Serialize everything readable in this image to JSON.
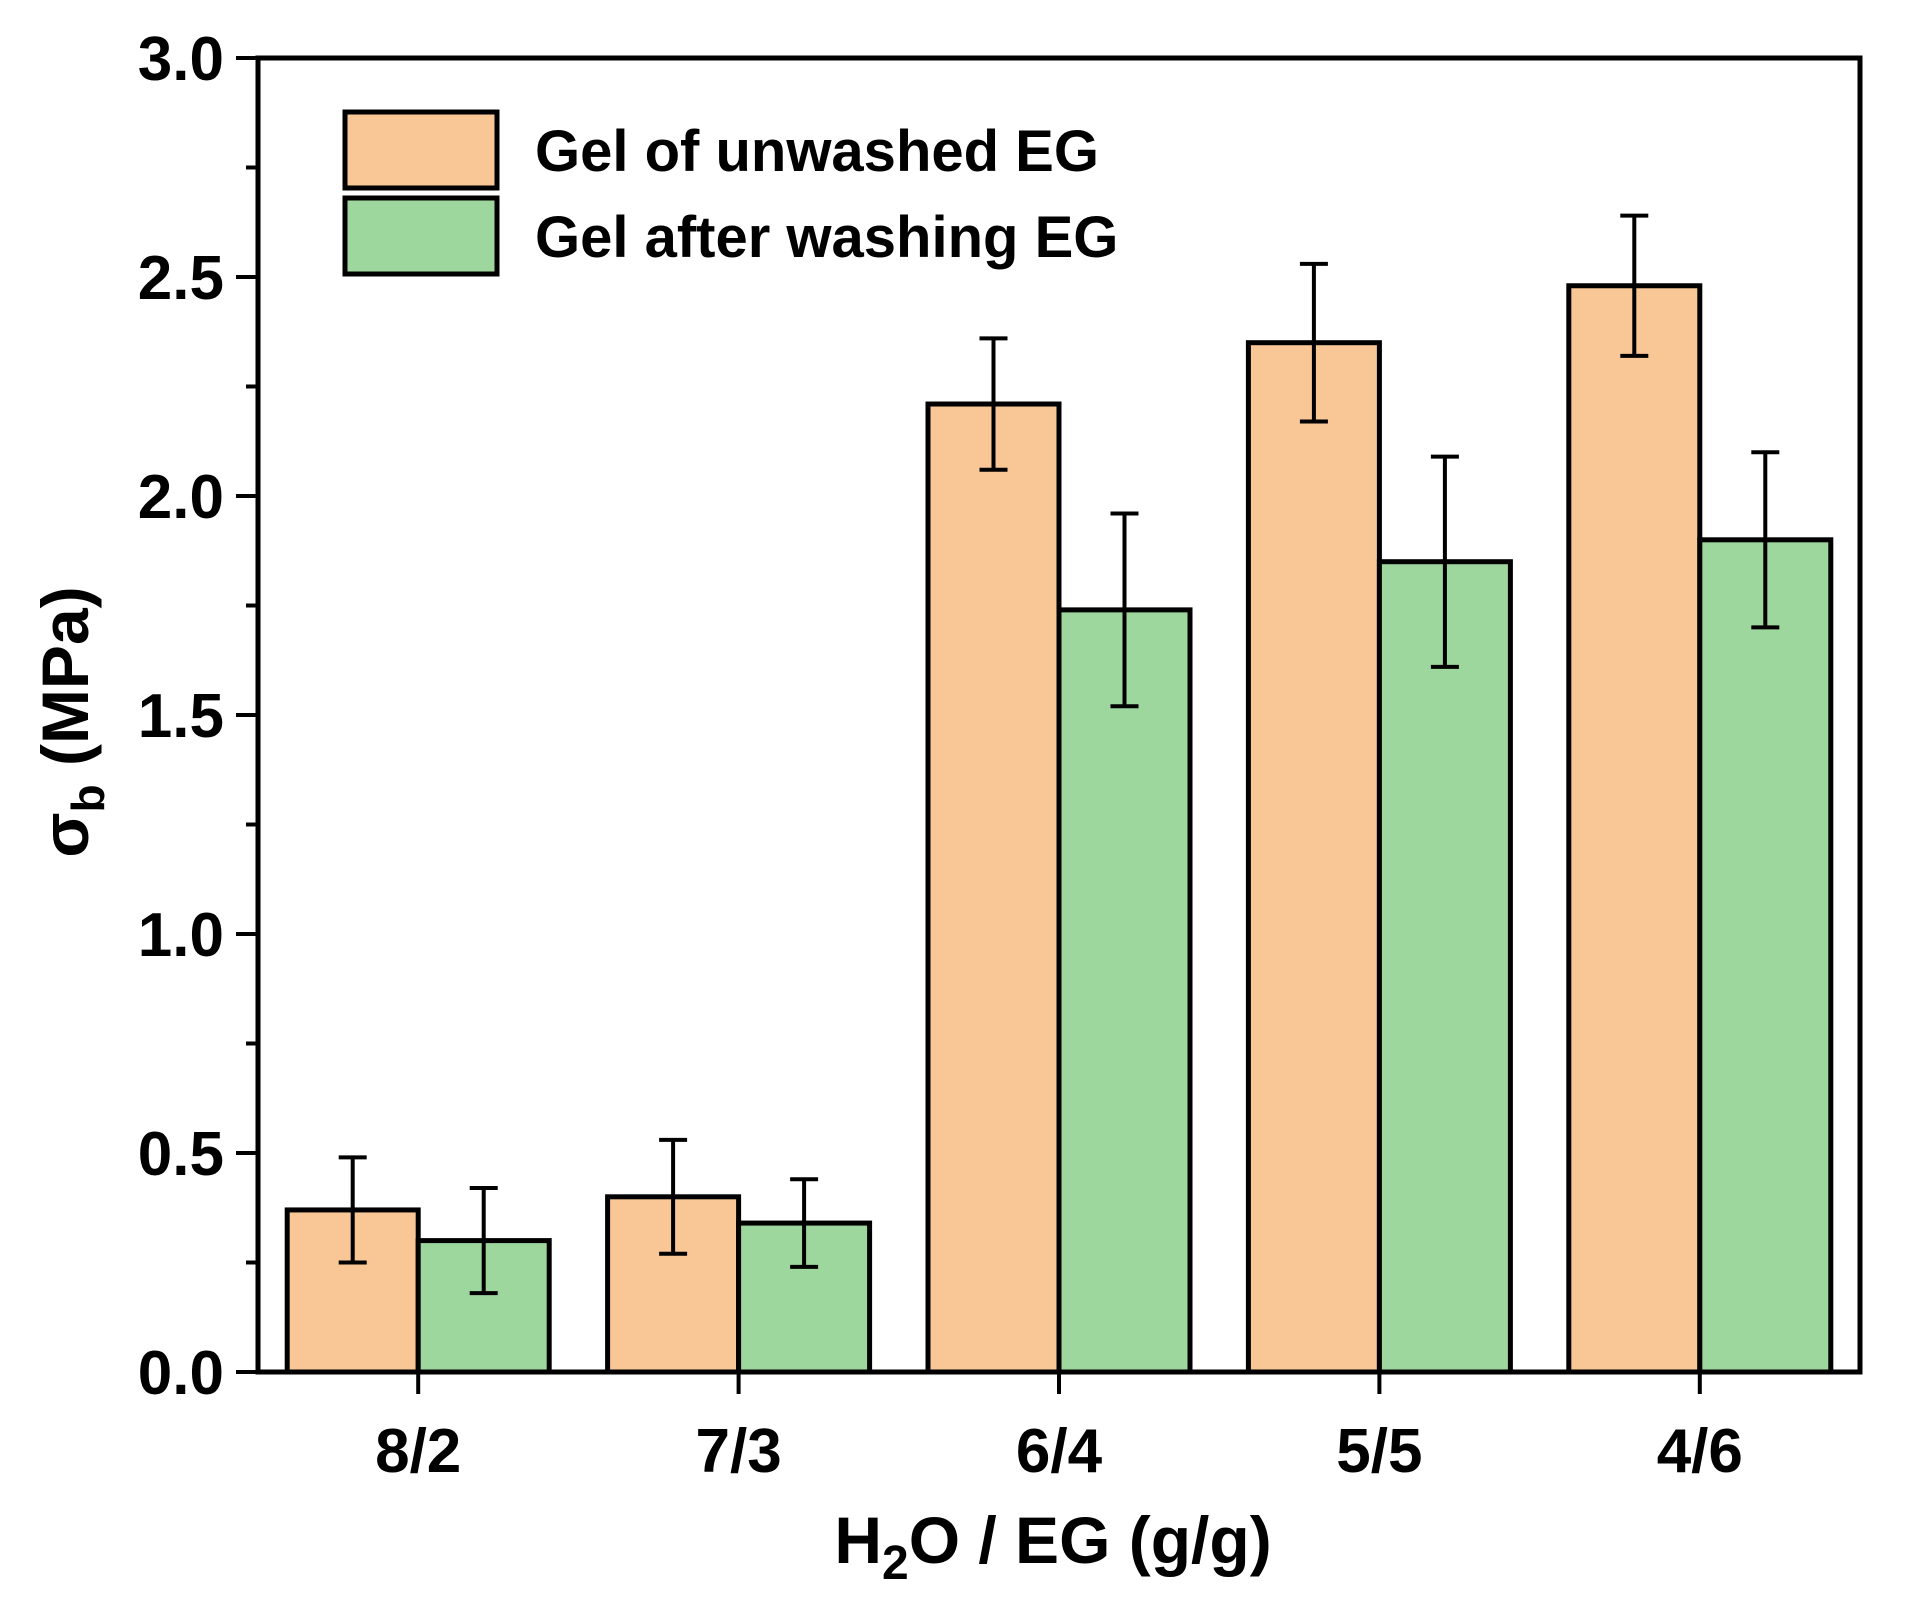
{
  "chart_data": {
    "type": "bar",
    "title": "",
    "xlabel": "H2O / EG (g/g)",
    "xlabel_parts": {
      "pre": "H",
      "sub": "2",
      "post": "O / EG (g/g)"
    },
    "ylabel": "σb (MPa)",
    "ylabel_parts": {
      "main": "σ",
      "sub": "b",
      "post": " (MPa)"
    },
    "ylim": [
      0,
      3.0
    ],
    "yticks": [
      "0.0",
      "0.5",
      "1.0",
      "1.5",
      "2.0",
      "2.5",
      "3.0"
    ],
    "ytick_values": [
      0,
      0.5,
      1.0,
      1.5,
      2.0,
      2.5,
      3.0
    ],
    "categories": [
      "8/2",
      "7/3",
      "6/4",
      "5/5",
      "4/6"
    ],
    "legend_position": "top-left",
    "series": [
      {
        "name": "Gel of unwashed EG",
        "color": "#F9C796",
        "values": [
          0.37,
          0.4,
          2.21,
          2.35,
          2.48
        ],
        "errors": [
          0.12,
          0.13,
          0.15,
          0.18,
          0.16
        ]
      },
      {
        "name": "Gel after washing EG",
        "color": "#9ED79E",
        "values": [
          0.3,
          0.34,
          1.74,
          1.85,
          1.9
        ],
        "errors": [
          0.12,
          0.1,
          0.22,
          0.24,
          0.2
        ]
      }
    ]
  }
}
